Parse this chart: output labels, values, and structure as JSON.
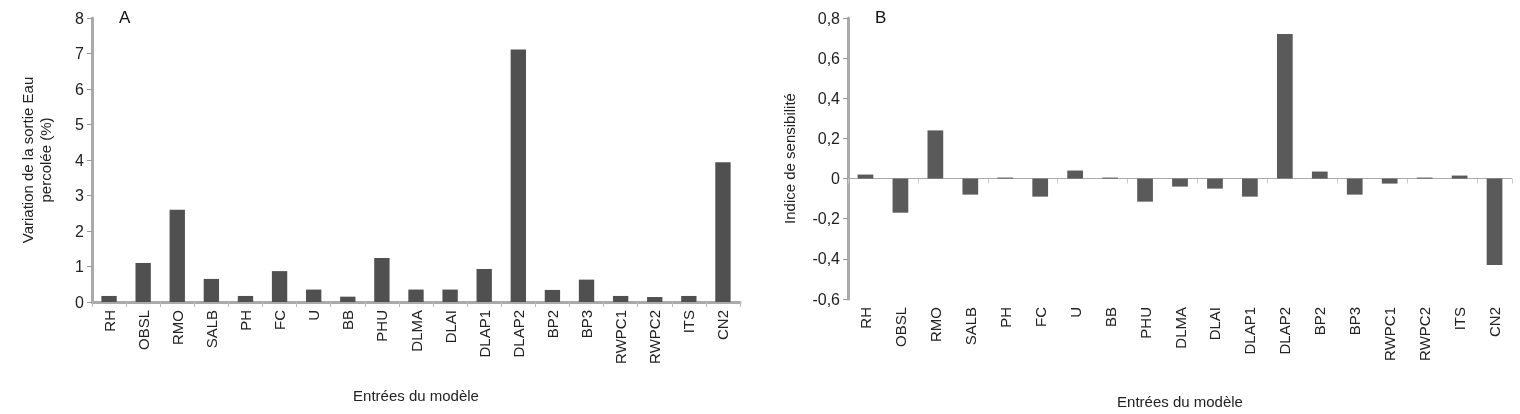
{
  "chart_data": [
    {
      "type": "bar",
      "title": "A",
      "xlabel": "Entrées du modèle",
      "ylabel": "Variation de la sortie Eau\npercolée (%)",
      "categories": [
        "RH",
        "OBSL",
        "RMO",
        "SALB",
        "PH",
        "FC",
        "U",
        "BB",
        "PHU",
        "DLMA",
        "DLAI",
        "DLAP1",
        "DLAP2",
        "BP2",
        "BP3",
        "RWPC1",
        "RWPC2",
        "ITS",
        "CN2"
      ],
      "series": [
        {
          "color": "#505050",
          "values": [
            0.17,
            1.1,
            2.6,
            0.65,
            0.17,
            0.87,
            0.35,
            0.15,
            1.24,
            0.35,
            0.35,
            0.93,
            7.11,
            0.34,
            0.63,
            0.17,
            0.14,
            0.17,
            3.94
          ]
        }
      ],
      "ylim": [
        0,
        8
      ],
      "yticks": [
        0,
        1,
        2,
        3,
        4,
        5,
        6,
        7,
        8
      ],
      "grid": false
    },
    {
      "type": "bar",
      "title": "B",
      "xlabel": "Entrées du modèle",
      "ylabel": "Indice de sensibilité",
      "categories": [
        "RH",
        "OBSL",
        "RMO",
        "SALB",
        "PH",
        "FC",
        "U",
        "BB",
        "PHU",
        "DLMA",
        "DLAI",
        "DLAP1",
        "DLAP2",
        "BP2",
        "BP3",
        "RWPC1",
        "RWPC2",
        "ITS",
        "CN2"
      ],
      "series": [
        {
          "color": "#5a5a5a",
          "values": [
            0.02,
            -0.17,
            0.24,
            -0.08,
            0.005,
            -0.09,
            0.04,
            0.005,
            -0.115,
            -0.04,
            -0.05,
            -0.09,
            0.72,
            0.035,
            -0.08,
            -0.025,
            0.005,
            0.015,
            -0.43
          ]
        }
      ],
      "ylim": [
        -0.6,
        0.8
      ],
      "yticks": [
        {
          "value": -0.6,
          "label": "-0,6"
        },
        {
          "value": -0.4,
          "label": "-0,4"
        },
        {
          "value": -0.2,
          "label": "-0,2"
        },
        0,
        {
          "value": 0.2,
          "label": "0,2"
        },
        {
          "value": 0.4,
          "label": "0,4"
        },
        {
          "value": 0.6,
          "label": "0,6"
        },
        {
          "value": 0.8,
          "label": "0,8"
        }
      ],
      "ref_lines": [
        {
          "axis": "y",
          "value": 0,
          "color": "#aaaaaa"
        }
      ],
      "grid": false
    }
  ]
}
